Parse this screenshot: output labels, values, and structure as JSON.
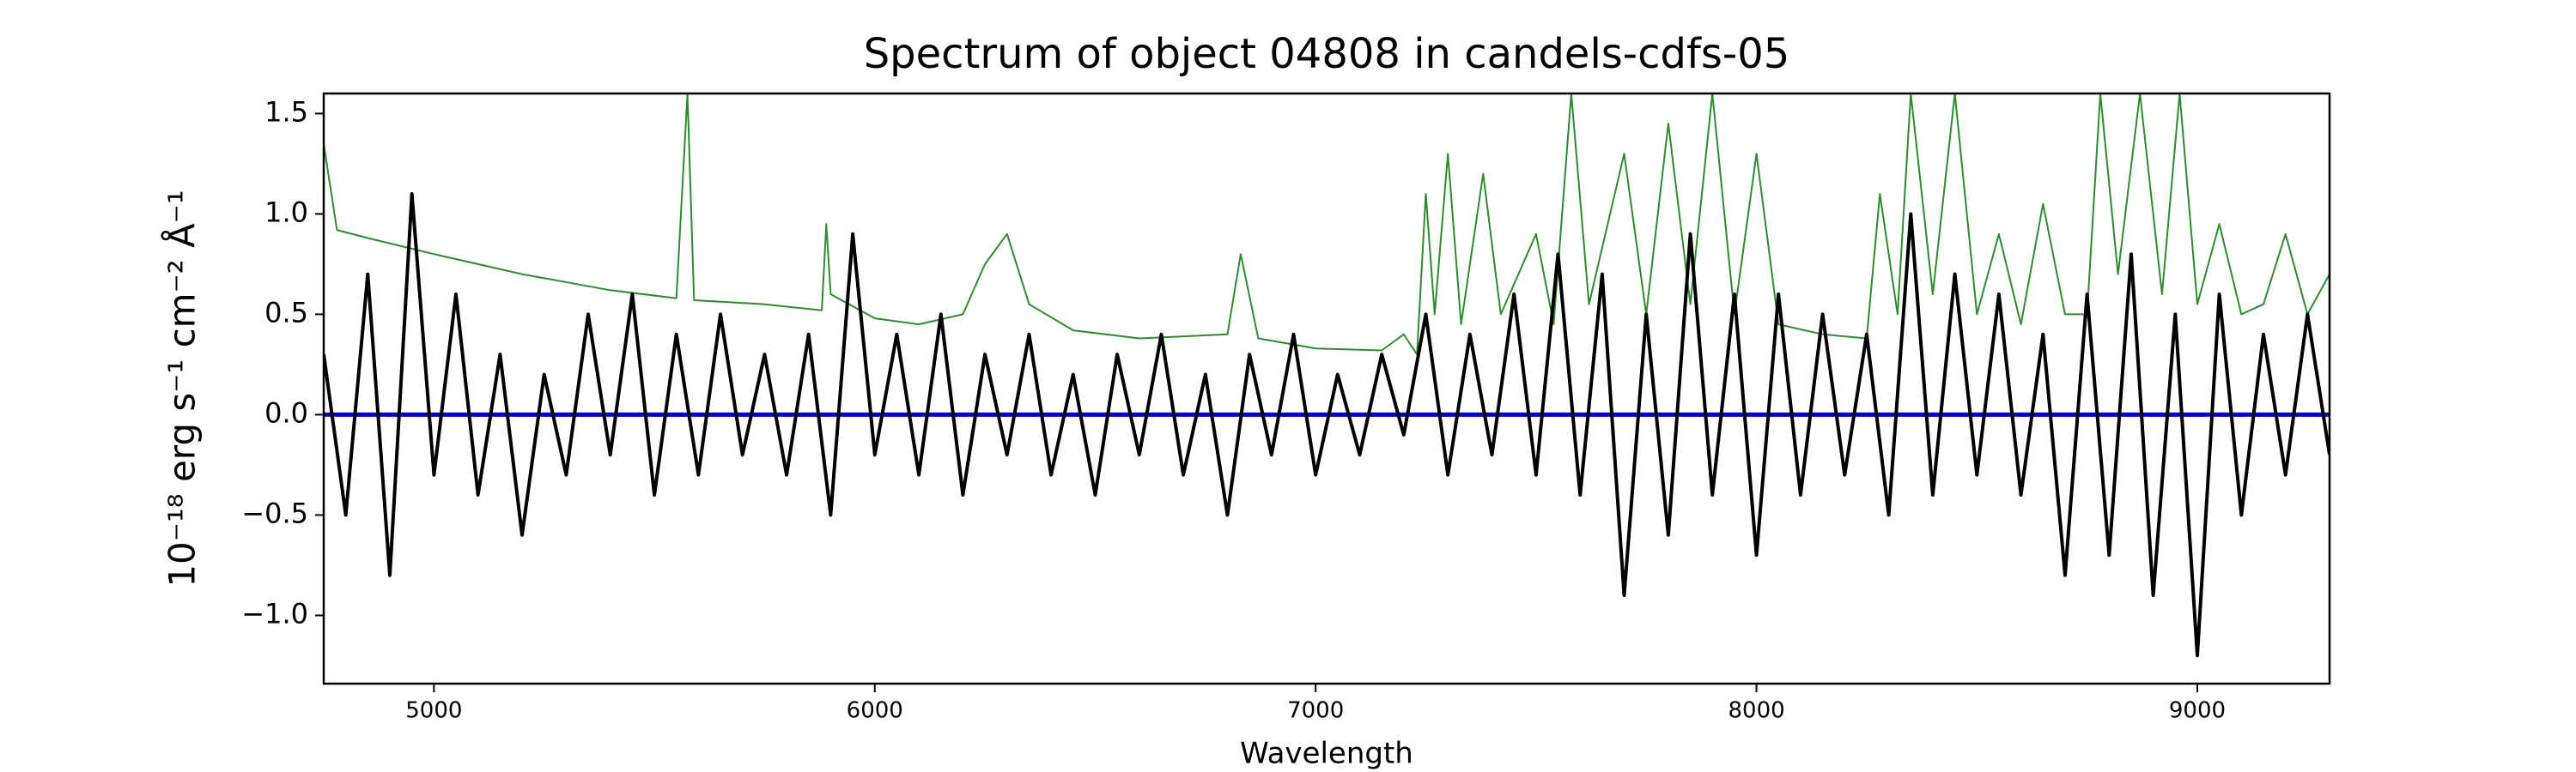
{
  "chart_data": {
    "type": "line",
    "title": "Spectrum of object 04808 in candels-cdfs-05",
    "x_label": "Wavelength",
    "y_label": "10⁻¹⁸ erg s⁻¹ cm⁻² Å⁻¹",
    "xlim": [
      4750,
      9300
    ],
    "xticks": [
      5000,
      6000,
      7000,
      8000,
      9000
    ],
    "ylim": [
      -1.34,
      1.6
    ],
    "yticks": [
      {
        "value": -1.0,
        "label": "−1.0"
      },
      {
        "value": -0.5,
        "label": "−0.5"
      },
      {
        "value": 0.0,
        "label": "0.0"
      },
      {
        "value": 0.5,
        "label": "0.5"
      },
      {
        "value": 1.0,
        "label": "1.0"
      },
      {
        "value": 1.5,
        "label": "1.5"
      }
    ],
    "grid": false,
    "series": [
      {
        "color": "#2e8b2e",
        "width": 2,
        "x": [
          4750,
          4780,
          4850,
          5000,
          5200,
          5400,
          5550,
          5575,
          5590,
          5750,
          5880,
          5890,
          5900,
          6000,
          6100,
          6200,
          6250,
          6300,
          6350,
          6450,
          6600,
          6800,
          6830,
          6870,
          7000,
          7150,
          7200,
          7230,
          7250,
          7270,
          7300,
          7330,
          7380,
          7420,
          7500,
          7540,
          7580,
          7620,
          7700,
          7750,
          7800,
          7850,
          7900,
          7950,
          8000,
          8050,
          8150,
          8250,
          8280,
          8320,
          8350,
          8400,
          8450,
          8500,
          8550,
          8600,
          8650,
          8700,
          8750,
          8780,
          8820,
          8870,
          8920,
          8960,
          9000,
          9050,
          9100,
          9150,
          9200,
          9250,
          9300
        ],
        "values": [
          1.35,
          0.92,
          0.88,
          0.8,
          0.7,
          0.62,
          0.58,
          1.6,
          0.57,
          0.55,
          0.52,
          0.95,
          0.6,
          0.48,
          0.45,
          0.5,
          0.75,
          0.9,
          0.55,
          0.42,
          0.38,
          0.4,
          0.8,
          0.38,
          0.33,
          0.32,
          0.4,
          0.3,
          1.1,
          0.5,
          1.3,
          0.45,
          1.2,
          0.5,
          0.9,
          0.45,
          1.6,
          0.55,
          1.3,
          0.5,
          1.45,
          0.55,
          1.6,
          0.5,
          1.3,
          0.45,
          0.4,
          0.38,
          1.1,
          0.5,
          1.6,
          0.6,
          1.6,
          0.5,
          0.9,
          0.45,
          1.05,
          0.5,
          0.5,
          1.6,
          0.7,
          1.6,
          0.6,
          1.6,
          0.55,
          0.95,
          0.5,
          0.55,
          0.9,
          0.5,
          0.7
        ]
      },
      {
        "color": "#0000cc",
        "width": 5,
        "x": [
          4750,
          9300
        ],
        "values": [
          0,
          0
        ]
      },
      {
        "color": "#000000",
        "width": 4,
        "x": [
          4750,
          4800,
          4850,
          4900,
          4950,
          5000,
          5050,
          5100,
          5150,
          5200,
          5250,
          5300,
          5350,
          5400,
          5450,
          5500,
          5550,
          5600,
          5650,
          5700,
          5750,
          5800,
          5850,
          5900,
          5950,
          6000,
          6050,
          6100,
          6150,
          6200,
          6250,
          6300,
          6350,
          6400,
          6450,
          6500,
          6550,
          6600,
          6650,
          6700,
          6750,
          6800,
          6850,
          6900,
          6950,
          7000,
          7050,
          7100,
          7150,
          7200,
          7250,
          7300,
          7350,
          7400,
          7450,
          7500,
          7550,
          7600,
          7650,
          7700,
          7750,
          7800,
          7850,
          7900,
          7950,
          8000,
          8050,
          8100,
          8150,
          8200,
          8250,
          8300,
          8350,
          8400,
          8450,
          8500,
          8550,
          8600,
          8650,
          8700,
          8750,
          8800,
          8850,
          8900,
          8950,
          9000,
          9050,
          9100,
          9150,
          9200,
          9250,
          9300
        ],
        "values": [
          0.3,
          -0.5,
          0.7,
          -0.8,
          1.1,
          -0.3,
          0.6,
          -0.4,
          0.3,
          -0.6,
          0.2,
          -0.3,
          0.5,
          -0.2,
          0.6,
          -0.4,
          0.4,
          -0.3,
          0.5,
          -0.2,
          0.3,
          -0.3,
          0.4,
          -0.5,
          0.9,
          -0.2,
          0.4,
          -0.3,
          0.5,
          -0.4,
          0.3,
          -0.2,
          0.4,
          -0.3,
          0.2,
          -0.4,
          0.3,
          -0.2,
          0.4,
          -0.3,
          0.2,
          -0.5,
          0.3,
          -0.2,
          0.4,
          -0.3,
          0.2,
          -0.2,
          0.3,
          -0.1,
          0.5,
          -0.3,
          0.4,
          -0.2,
          0.6,
          -0.3,
          0.8,
          -0.4,
          0.7,
          -0.9,
          0.5,
          -0.6,
          0.9,
          -0.4,
          0.6,
          -0.7,
          0.6,
          -0.4,
          0.5,
          -0.3,
          0.4,
          -0.5,
          1.0,
          -0.4,
          0.7,
          -0.3,
          0.6,
          -0.4,
          0.4,
          -0.8,
          0.6,
          -0.7,
          0.8,
          -0.9,
          0.5,
          -1.2,
          0.6,
          -0.5,
          0.4,
          -0.3,
          0.5,
          -0.2
        ]
      }
    ]
  }
}
